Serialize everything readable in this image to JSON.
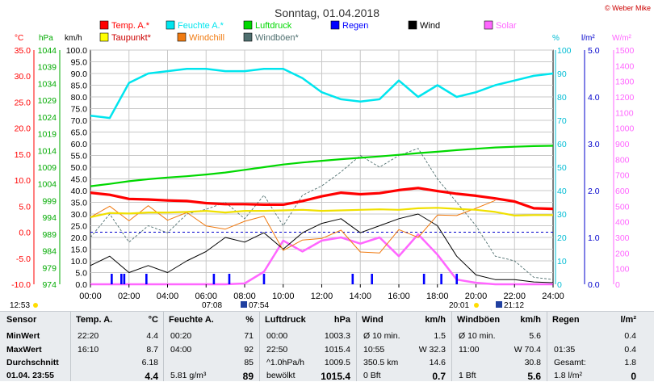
{
  "title": "Sonntag, 01.04.2018",
  "credit": "© Weber Mike",
  "colors": {
    "temp": "#ff0000",
    "dew": "#ffff00",
    "humidity": "#00e5ee",
    "windchill": "#f07a10",
    "pressure": "#00d800",
    "gusts": "#4f6f6f",
    "rain": "#0000ff",
    "wind": "#000000",
    "solar": "#ff66ff"
  },
  "legend": [
    {
      "label": "Temp. A.*",
      "color": "#ff0000"
    },
    {
      "label": "Taupunkt*",
      "color": "#ffff00"
    },
    {
      "label": "Feuchte A.*",
      "color": "#00e5ee"
    },
    {
      "label": "Windchill",
      "color": "#f07a10"
    },
    {
      "label": "Luftdruck",
      "color": "#00d800"
    },
    {
      "label": "Windböen*",
      "color": "#4f6f6f"
    },
    {
      "label": "Regen",
      "color": "#0000ff"
    },
    {
      "label": "Wind",
      "color": "#000000"
    },
    {
      "label": "Solar",
      "color": "#ff66ff"
    }
  ],
  "axis_units": {
    "temp": "°C",
    "pressure": "hPa",
    "wind": "km/h",
    "humidity": "%",
    "rain": "l/m²",
    "solar": "W/m²"
  },
  "sun_times": {
    "left": "12:53",
    "sunrise": "07:08",
    "sunrise2": "07:54",
    "sunset": "20:01",
    "sunset2": "21:12"
  },
  "chart_data": {
    "type": "line",
    "xlabel": "",
    "x_ticks": [
      "00:00",
      "02:00",
      "04:00",
      "06:00",
      "08:00",
      "10:00",
      "12:00",
      "14:00",
      "16:00",
      "18:00",
      "20:00",
      "22:00",
      "24:00"
    ],
    "x_hours": [
      0,
      1,
      2,
      3,
      4,
      5,
      6,
      7,
      8,
      9,
      10,
      11,
      12,
      13,
      14,
      15,
      16,
      17,
      18,
      19,
      20,
      21,
      22,
      23,
      24
    ],
    "axes": {
      "temp": {
        "ticks": [
          "35.0",
          "30.0",
          "25.0",
          "20.0",
          "15.0",
          "10.0",
          "5.0",
          "0.0",
          "-5.0",
          "-10.0"
        ],
        "ylim": [
          -10,
          35
        ]
      },
      "pressure": {
        "ticks": [
          "1044",
          "1039",
          "1034",
          "1029",
          "1024",
          "1019",
          "1014",
          "1009",
          "1004",
          "999",
          "994",
          "989",
          "984",
          "979",
          "974"
        ],
        "ylim": [
          974,
          1044
        ]
      },
      "wind": {
        "ticks": [
          "100.0",
          "95.0",
          "90.0",
          "85.0",
          "80.0",
          "75.0",
          "70.0",
          "65.0",
          "60.0",
          "55.0",
          "50.0",
          "45.0",
          "40.0",
          "35.0",
          "30.0",
          "25.0",
          "20.0",
          "15.0",
          "10.0",
          "5.0",
          "0.0"
        ],
        "ylim": [
          0,
          100
        ]
      },
      "humidity": {
        "ticks": [
          "100",
          "90",
          "80",
          "70",
          "60",
          "50",
          "40",
          "30",
          "20",
          "10",
          "0"
        ],
        "ylim": [
          0,
          100
        ]
      },
      "rain": {
        "ticks": [
          "5.0",
          "4.0",
          "3.0",
          "2.0",
          "1.0",
          "0.0"
        ],
        "ylim": [
          0,
          5
        ]
      },
      "solar": {
        "ticks": [
          "1500",
          "1400",
          "1300",
          "1200",
          "1100",
          "1000",
          "900",
          "800",
          "700",
          "600",
          "500",
          "400",
          "300",
          "200",
          "100",
          "0"
        ],
        "ylim": [
          0,
          1500
        ]
      }
    },
    "series": [
      {
        "name": "Temp. A.*",
        "axis": "temp",
        "values": [
          7.6,
          7.2,
          6.4,
          6.3,
          6.1,
          6.0,
          5.6,
          5.4,
          5.4,
          5.3,
          5.3,
          6.0,
          6.9,
          7.6,
          7.3,
          7.5,
          8.1,
          8.5,
          7.9,
          7.4,
          7.0,
          6.5,
          5.9,
          4.6,
          4.5
        ]
      },
      {
        "name": "Taupunkt*",
        "axis": "temp",
        "values": [
          2.9,
          3.7,
          3.6,
          3.8,
          3.8,
          3.9,
          4.1,
          3.8,
          4.1,
          4.1,
          4.2,
          4.3,
          4.1,
          4.2,
          4.3,
          4.4,
          4.3,
          4.6,
          4.7,
          4.5,
          4.3,
          3.9,
          3.2,
          3.3,
          3.3
        ]
      },
      {
        "name": "Feuchte A.*",
        "axis": "humidity",
        "values": [
          72,
          71,
          86,
          90,
          91,
          92,
          92,
          91,
          91,
          92,
          92,
          88,
          82,
          79,
          78,
          79,
          87,
          80,
          85,
          80,
          82,
          85,
          87,
          89,
          90
        ]
      },
      {
        "name": "Windchill",
        "axis": "temp",
        "values": [
          2.9,
          5.0,
          2.2,
          5.1,
          2.3,
          3.8,
          1.2,
          0.6,
          2.1,
          3.1,
          -3.5,
          -1.5,
          -1.2,
          0.4,
          -3.8,
          -4.0,
          0.5,
          -1.0,
          3.3,
          3.2,
          4.6,
          6.1,
          null,
          null,
          null
        ]
      },
      {
        "name": "Luftdruck",
        "axis": "pressure",
        "values": [
          1003.3,
          1004.0,
          1004.8,
          1005.4,
          1005.9,
          1006.3,
          1006.8,
          1007.4,
          1008.2,
          1009.0,
          1009.8,
          1010.4,
          1010.9,
          1011.4,
          1011.8,
          1012.2,
          1012.7,
          1013.2,
          1013.6,
          1014.1,
          1014.5,
          1014.9,
          1015.1,
          1015.3,
          1015.4
        ]
      },
      {
        "name": "Windböen*",
        "axis": "wind",
        "values": [
          20,
          30,
          18,
          25,
          22,
          30,
          32,
          35,
          28,
          38,
          25,
          38,
          42,
          48,
          55,
          50,
          55,
          58,
          45,
          35,
          25,
          12,
          10,
          3,
          2
        ]
      },
      {
        "name": "Wind",
        "axis": "wind",
        "values": [
          8,
          12,
          5,
          8,
          5,
          10,
          14,
          20,
          18,
          22,
          15,
          22,
          26,
          28,
          22,
          25,
          28,
          30,
          25,
          12,
          4,
          2,
          2,
          1,
          0.7
        ]
      },
      {
        "name": "Solar",
        "axis": "solar",
        "values": [
          0,
          0,
          0,
          0,
          0,
          0,
          0,
          0,
          5,
          80,
          280,
          210,
          280,
          300,
          260,
          300,
          180,
          320,
          190,
          30,
          10,
          0,
          0,
          0,
          0
        ]
      }
    ],
    "rain_events_hours": [
      1.1,
      1.6,
      1.75,
      2.9,
      6.4,
      7.2,
      9.0,
      13.6,
      14.6,
      17.3,
      18.2,
      19.0
    ]
  },
  "stats": {
    "sensor": {
      "header": "Sensor",
      "rows": [
        "MinWert",
        "MaxWert",
        "Durchschnitt",
        "01.04. 23:55"
      ]
    },
    "temp": {
      "header": "Temp. A.",
      "unit": "°C",
      "rows": [
        [
          "22:20",
          "4.4"
        ],
        [
          "16:10",
          "8.7"
        ],
        [
          "",
          "6.18"
        ],
        [
          "",
          "4.4"
        ]
      ]
    },
    "humidity": {
      "header": "Feuchte A.",
      "unit": "%",
      "rows": [
        [
          "00:20",
          "71"
        ],
        [
          "04:00",
          "92"
        ],
        [
          "",
          "85"
        ],
        [
          "5.81 g/m³",
          "89"
        ]
      ]
    },
    "pressure": {
      "header": "Luftdruck",
      "unit": "hPa",
      "rows": [
        [
          "00:00",
          "1003.3"
        ],
        [
          "22:50",
          "1015.4"
        ],
        [
          "^1.0hPa/h",
          "1009.5"
        ],
        [
          "bewölkt",
          "1015.4"
        ]
      ]
    },
    "wind": {
      "header": "Wind",
      "unit": "km/h",
      "rows": [
        [
          "Ø 10 min.",
          "1.5"
        ],
        [
          "10:55",
          "W 32.3"
        ],
        [
          "350.5 km",
          "14.6"
        ],
        [
          "0 Bft",
          "0.7"
        ]
      ]
    },
    "gusts": {
      "header": "Windböen",
      "unit": "km/h",
      "rows": [
        [
          "Ø 10 min.",
          "5.6"
        ],
        [
          "11:00",
          "W 70.4"
        ],
        [
          "",
          "30.8"
        ],
        [
          "1 Bft",
          "5.6"
        ]
      ]
    },
    "rain": {
      "header": "Regen",
      "unit": "l/m²",
      "rows": [
        [
          "",
          "0.4"
        ],
        [
          "01:35",
          "0.4"
        ],
        [
          "Gesamt:",
          "1.8"
        ],
        [
          "1.8 l/m²",
          "0"
        ]
      ]
    }
  }
}
